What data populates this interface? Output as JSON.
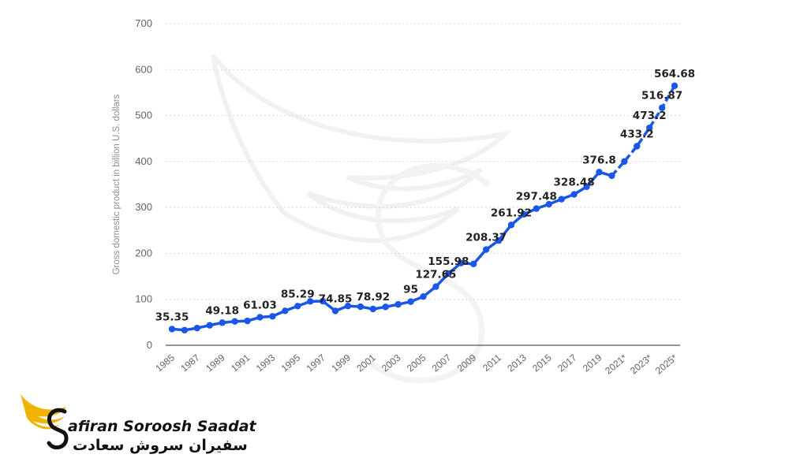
{
  "chart_data": {
    "type": "line",
    "title": "",
    "ylabel": "Gross domestic product in billion U.S. dollars",
    "xlabel": "",
    "ylim": [
      0,
      700
    ],
    "yticks": [
      0,
      100,
      200,
      300,
      400,
      500,
      600,
      700
    ],
    "grid": true,
    "line_color": "#1a56e8",
    "x": [
      "1985",
      "1986",
      "1987",
      "1988",
      "1989",
      "1990",
      "1991",
      "1992",
      "1993",
      "1994",
      "1995",
      "1996",
      "1997",
      "1998",
      "1999",
      "2000",
      "2001",
      "2002",
      "2003",
      "2004",
      "2005",
      "2006",
      "2007",
      "2008",
      "2009",
      "2010",
      "2011",
      "2012",
      "2013",
      "2014",
      "2015",
      "2016",
      "2017",
      "2018",
      "2019",
      "2020",
      "2021*",
      "2022*",
      "2023*",
      "2024*",
      "2025*"
    ],
    "xticks": [
      "1985",
      "1987",
      "1989",
      "1991",
      "1993",
      "1995",
      "1997",
      "1999",
      "2001",
      "2003",
      "2005",
      "2007",
      "2009",
      "2011",
      "2013",
      "2015",
      "2017",
      "2019",
      "2021*",
      "2023*",
      "2025*"
    ],
    "values": [
      35.35,
      33,
      37.5,
      43.5,
      49.18,
      52,
      53,
      61.03,
      63,
      75,
      85.29,
      95.5,
      96,
      74.85,
      85.5,
      84,
      78.92,
      83.5,
      89,
      95,
      106,
      127.65,
      155.98,
      179,
      177,
      208.37,
      228,
      261.92,
      285,
      297.48,
      307,
      318,
      328.48,
      345,
      376.8,
      369,
      400,
      433.2,
      473.2,
      516.87,
      564.68
    ],
    "labels": [
      {
        "i": 0,
        "text": "35.35"
      },
      {
        "i": 4,
        "text": "49.18"
      },
      {
        "i": 7,
        "text": "61.03"
      },
      {
        "i": 10,
        "text": "85.29"
      },
      {
        "i": 13,
        "text": "74.85"
      },
      {
        "i": 16,
        "text": "78.92"
      },
      {
        "i": 19,
        "text": "95"
      },
      {
        "i": 21,
        "text": "127.65"
      },
      {
        "i": 22,
        "text": "155.98"
      },
      {
        "i": 25,
        "text": "208.37"
      },
      {
        "i": 27,
        "text": "261.92"
      },
      {
        "i": 29,
        "text": "297.48"
      },
      {
        "i": 32,
        "text": "328.48"
      },
      {
        "i": 34,
        "text": "376.8"
      },
      {
        "i": 37,
        "text": "433.2"
      },
      {
        "i": 38,
        "text": "473.2"
      },
      {
        "i": 39,
        "text": "516.87"
      },
      {
        "i": 40,
        "text": "564.68"
      }
    ]
  },
  "logo": {
    "name_en": "afiran Soroosh Saadat",
    "name_fa": "سفیران سروش سعادت",
    "accent": "#f0b400"
  }
}
